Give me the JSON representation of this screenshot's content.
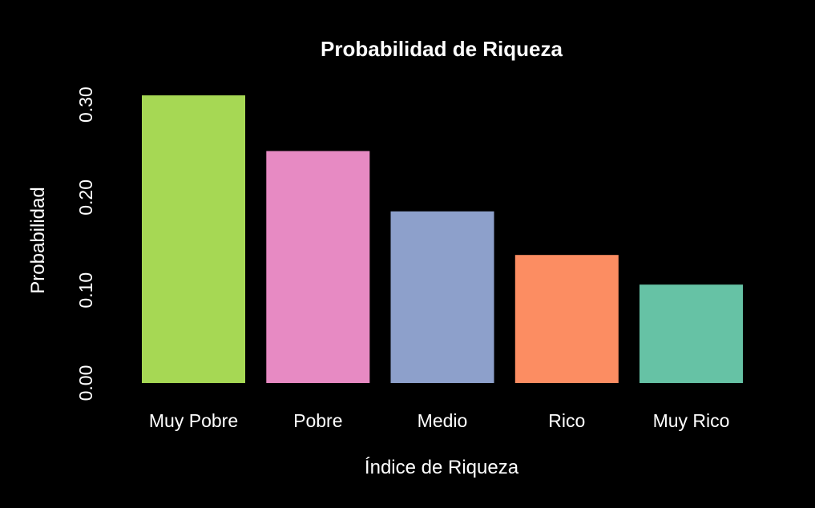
{
  "chart_data": {
    "type": "bar",
    "title": "Probabilidad de Riqueza",
    "xlabel": "Índice de Riqueza",
    "ylabel": "Probabilidad",
    "categories": [
      "Muy Pobre",
      "Pobre",
      "Medio",
      "Rico",
      "Muy Rico"
    ],
    "values": [
      0.31,
      0.25,
      0.185,
      0.138,
      0.106
    ],
    "colors": [
      "#A6D854",
      "#E78AC3",
      "#8DA0CB",
      "#FC8D62",
      "#66C2A5"
    ],
    "ylim": [
      0,
      0.31
    ],
    "yticks": [
      0.0,
      0.1,
      0.2,
      0.3
    ],
    "ytick_labels": [
      "0.00",
      "0.10",
      "0.20",
      "0.30"
    ],
    "grid": false,
    "background": "#000000",
    "text_color": "#FFFFFF"
  }
}
